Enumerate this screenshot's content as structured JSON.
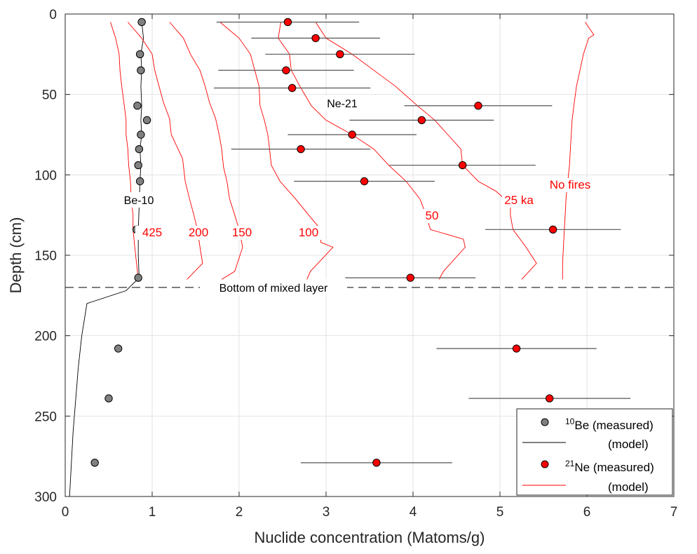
{
  "chart_data": {
    "type": "scatter",
    "title": "",
    "xlabel": "Nuclide concentration (Matoms/g)",
    "ylabel": "Depth (cm)",
    "xlim": [
      0,
      7
    ],
    "ylim": [
      300,
      0
    ],
    "y_reversed": true,
    "grid": true,
    "xticks": [
      "0",
      "1",
      "2",
      "3",
      "4",
      "5",
      "6",
      "7"
    ],
    "yticks": [
      "0",
      "50",
      "100",
      "150",
      "200",
      "250",
      "300"
    ],
    "mixed_layer_depth": 170,
    "mixed_layer_label": "Bottom of mixed layer",
    "be10_label": "Be-10",
    "ne21_label": "Ne-21",
    "series": [
      {
        "name": "10Be (measured)",
        "color": "#808080",
        "points": [
          {
            "x": 0.88,
            "y": 5
          },
          {
            "x": 0.86,
            "y": 25
          },
          {
            "x": 0.87,
            "y": 35
          },
          {
            "x": 0.83,
            "y": 57
          },
          {
            "x": 0.94,
            "y": 66
          },
          {
            "x": 0.87,
            "y": 75
          },
          {
            "x": 0.85,
            "y": 84
          },
          {
            "x": 0.84,
            "y": 94
          },
          {
            "x": 0.86,
            "y": 104
          },
          {
            "x": 0.82,
            "y": 134
          },
          {
            "x": 0.84,
            "y": 164
          },
          {
            "x": 0.61,
            "y": 208
          },
          {
            "x": 0.5,
            "y": 239
          },
          {
            "x": 0.34,
            "y": 279
          }
        ]
      },
      {
        "name": "10Be (model)",
        "color": "#000000",
        "line": [
          [
            0.88,
            5
          ],
          [
            0.9,
            15
          ],
          [
            0.87,
            25
          ],
          [
            0.88,
            35
          ],
          [
            0.87,
            45
          ],
          [
            0.88,
            57
          ],
          [
            0.87,
            66
          ],
          [
            0.88,
            75
          ],
          [
            0.86,
            84
          ],
          [
            0.87,
            94
          ],
          [
            0.86,
            104
          ],
          [
            0.85,
            120
          ],
          [
            0.84,
            134
          ],
          [
            0.84,
            150
          ],
          [
            0.85,
            164
          ],
          [
            0.7,
            172
          ],
          [
            0.25,
            180
          ],
          [
            0.19,
            200
          ],
          [
            0.15,
            220
          ],
          [
            0.12,
            240
          ],
          [
            0.09,
            260
          ],
          [
            0.07,
            280
          ],
          [
            0.05,
            300
          ]
        ]
      },
      {
        "name": "21Ne (measured)",
        "color": "#ff0000",
        "points": [
          {
            "x": 2.56,
            "y": 5,
            "xerr": [
              1.74,
              3.38
            ]
          },
          {
            "x": 2.88,
            "y": 15,
            "xerr": [
              2.14,
              3.62
            ]
          },
          {
            "x": 3.16,
            "y": 25,
            "xerr": [
              2.3,
              4.02
            ]
          },
          {
            "x": 2.54,
            "y": 35,
            "xerr": [
              1.76,
              3.32
            ]
          },
          {
            "x": 2.61,
            "y": 46,
            "xerr": [
              1.71,
              3.51
            ]
          },
          {
            "x": 4.75,
            "y": 57,
            "xerr": [
              3.9,
              5.6
            ]
          },
          {
            "x": 4.1,
            "y": 66,
            "xerr": [
              3.27,
              4.93
            ]
          },
          {
            "x": 3.3,
            "y": 75,
            "xerr": [
              2.56,
              4.04
            ]
          },
          {
            "x": 2.71,
            "y": 84,
            "xerr": [
              1.91,
              3.51
            ]
          },
          {
            "x": 4.57,
            "y": 94,
            "xerr": [
              3.73,
              5.41
            ]
          },
          {
            "x": 3.44,
            "y": 104,
            "xerr": [
              2.63,
              4.25
            ]
          },
          {
            "x": 5.61,
            "y": 134,
            "xerr": [
              4.83,
              6.39
            ]
          },
          {
            "x": 3.97,
            "y": 164,
            "xerr": [
              3.22,
              4.72
            ]
          },
          {
            "x": 5.19,
            "y": 208,
            "xerr": [
              4.27,
              6.11
            ]
          },
          {
            "x": 5.57,
            "y": 239,
            "xerr": [
              4.64,
              6.5
            ]
          },
          {
            "x": 3.58,
            "y": 279,
            "xerr": [
              2.71,
              4.45
            ]
          }
        ]
      },
      {
        "name": "21Ne (model) 425",
        "label": "425",
        "color": "#ff0000",
        "line": [
          [
            0.52,
            5
          ],
          [
            0.58,
            15
          ],
          [
            0.62,
            25
          ],
          [
            0.63,
            35
          ],
          [
            0.65,
            45
          ],
          [
            0.68,
            57
          ],
          [
            0.7,
            66
          ],
          [
            0.7,
            75
          ],
          [
            0.72,
            84
          ],
          [
            0.73,
            94
          ],
          [
            0.75,
            104
          ],
          [
            0.76,
            115
          ],
          [
            0.78,
            125
          ],
          [
            0.78,
            134
          ],
          [
            0.8,
            145
          ],
          [
            0.82,
            155
          ],
          [
            0.84,
            165
          ]
        ]
      },
      {
        "name": "21Ne (model) 200",
        "label": "200",
        "color": "#ff0000",
        "line": [
          [
            0.72,
            5
          ],
          [
            0.88,
            15
          ],
          [
            1.0,
            25
          ],
          [
            1.03,
            35
          ],
          [
            1.08,
            45
          ],
          [
            1.13,
            55
          ],
          [
            1.2,
            65
          ],
          [
            1.22,
            75
          ],
          [
            1.35,
            90
          ],
          [
            1.38,
            104
          ],
          [
            1.43,
            115
          ],
          [
            1.48,
            125
          ],
          [
            1.52,
            134
          ],
          [
            1.55,
            145
          ],
          [
            1.58,
            155
          ],
          [
            1.4,
            165
          ]
        ]
      },
      {
        "name": "21Ne (model) 150",
        "label": "150",
        "color": "#ff0000",
        "line": [
          [
            1.2,
            5
          ],
          [
            1.36,
            15
          ],
          [
            1.44,
            25
          ],
          [
            1.55,
            35
          ],
          [
            1.61,
            45
          ],
          [
            1.66,
            55
          ],
          [
            1.73,
            65
          ],
          [
            1.77,
            75
          ],
          [
            1.8,
            84
          ],
          [
            1.82,
            95
          ],
          [
            1.86,
            104
          ],
          [
            1.89,
            115
          ],
          [
            1.95,
            125
          ],
          [
            2.0,
            134
          ],
          [
            2.04,
            145
          ],
          [
            1.95,
            160
          ],
          [
            1.8,
            165
          ]
        ]
      },
      {
        "name": "21Ne (model) 100",
        "label": "100",
        "color": "#ff0000",
        "line": [
          [
            1.78,
            5
          ],
          [
            2.0,
            15
          ],
          [
            2.13,
            25
          ],
          [
            2.18,
            35
          ],
          [
            2.23,
            45
          ],
          [
            2.24,
            57
          ],
          [
            2.29,
            66
          ],
          [
            2.33,
            75
          ],
          [
            2.35,
            84
          ],
          [
            2.37,
            94
          ],
          [
            2.47,
            104
          ],
          [
            2.65,
            115
          ],
          [
            2.8,
            125
          ],
          [
            2.94,
            134
          ],
          [
            2.94,
            142
          ],
          [
            3.08,
            145
          ],
          [
            2.82,
            160
          ],
          [
            2.78,
            165
          ]
        ]
      },
      {
        "name": "21Ne (model) 50",
        "label": "50",
        "color": "#ff0000",
        "line": [
          [
            2.48,
            5
          ],
          [
            2.45,
            15
          ],
          [
            2.58,
            25
          ],
          [
            2.6,
            35
          ],
          [
            2.7,
            45
          ],
          [
            2.83,
            57
          ],
          [
            3.0,
            66
          ],
          [
            3.3,
            75
          ],
          [
            3.55,
            84
          ],
          [
            3.72,
            94
          ],
          [
            3.92,
            104
          ],
          [
            4.08,
            115
          ],
          [
            4.15,
            125
          ],
          [
            4.2,
            134
          ],
          [
            4.58,
            140
          ],
          [
            4.6,
            145
          ],
          [
            4.35,
            160
          ],
          [
            4.3,
            165
          ]
        ]
      },
      {
        "name": "21Ne (model) 25 ka",
        "label": "25 ka",
        "color": "#ff0000",
        "line": [
          [
            2.88,
            5
          ],
          [
            3.0,
            15
          ],
          [
            3.3,
            25
          ],
          [
            3.55,
            35
          ],
          [
            3.8,
            45
          ],
          [
            4.05,
            57
          ],
          [
            4.25,
            66
          ],
          [
            4.4,
            75
          ],
          [
            4.55,
            84
          ],
          [
            4.57,
            94
          ],
          [
            4.75,
            104
          ],
          [
            4.95,
            110
          ],
          [
            5.12,
            118
          ],
          [
            5.12,
            125
          ],
          [
            5.15,
            134
          ],
          [
            5.3,
            145
          ],
          [
            5.42,
            155
          ],
          [
            5.25,
            165
          ]
        ]
      },
      {
        "name": "21Ne (model) No fires",
        "label": "No fires",
        "color": "#ff0000",
        "line": [
          [
            5.98,
            5
          ],
          [
            6.08,
            13
          ],
          [
            6.02,
            15
          ],
          [
            5.96,
            25
          ],
          [
            5.92,
            35
          ],
          [
            5.88,
            45
          ],
          [
            5.85,
            57
          ],
          [
            5.83,
            66
          ],
          [
            5.82,
            75
          ],
          [
            5.81,
            84
          ],
          [
            5.8,
            94
          ],
          [
            5.78,
            104
          ],
          [
            5.76,
            115
          ],
          [
            5.75,
            125
          ],
          [
            5.74,
            134
          ],
          [
            5.73,
            145
          ],
          [
            5.72,
            155
          ],
          [
            5.72,
            165
          ]
        ]
      }
    ],
    "legend": {
      "position": "bottom-right",
      "entries": [
        {
          "sup": "10",
          "text": "Be (measured)"
        },
        {
          "text": "(model)"
        },
        {
          "sup": "21",
          "text": "Ne (measured)"
        },
        {
          "text": "(model)"
        }
      ]
    }
  }
}
